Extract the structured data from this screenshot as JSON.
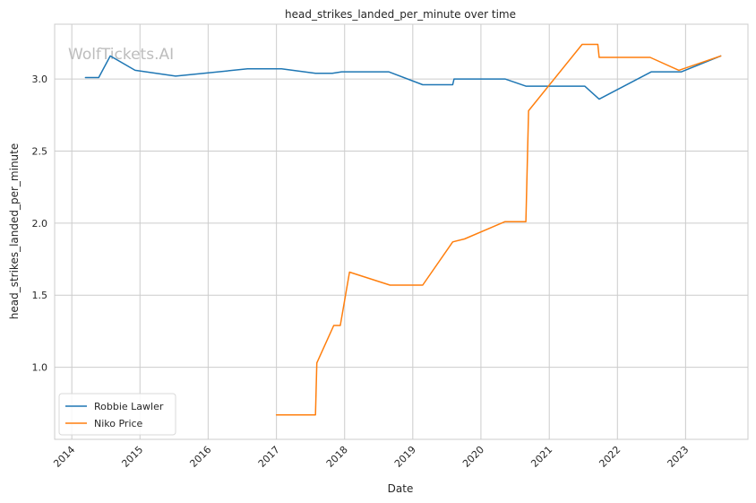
{
  "chart_data": {
    "type": "line",
    "title": "head_strikes_landed_per_minute over time",
    "xlabel": "Date",
    "ylabel": "head_strikes_landed_per_minute",
    "watermark": "WolfTickets.AI",
    "x_ticks": [
      "2014",
      "2015",
      "2016",
      "2017",
      "2018",
      "2019",
      "2020",
      "2021",
      "2022",
      "2023"
    ],
    "y_ticks": [
      "1.0",
      "1.5",
      "2.0",
      "2.5",
      "3.0"
    ],
    "ylim": [
      0.5,
      3.38
    ],
    "xlim": [
      "2013-10-01",
      "2023-12-01"
    ],
    "grid": true,
    "legend_position": "lower-left",
    "series": [
      {
        "name": "Robbie Lawler",
        "color": "#1f77b4",
        "points": [
          [
            "2014-03-15",
            3.01
          ],
          [
            "2014-05-25",
            3.01
          ],
          [
            "2014-07-26",
            3.16
          ],
          [
            "2014-12-06",
            3.06
          ],
          [
            "2015-07-11",
            3.02
          ],
          [
            "2016-07-30",
            3.07
          ],
          [
            "2017-01-28",
            3.07
          ],
          [
            "2017-07-29",
            3.04
          ],
          [
            "2017-10-27",
            3.04
          ],
          [
            "2017-12-16",
            3.05
          ],
          [
            "2018-08-25",
            3.05
          ],
          [
            "2019-02-23",
            2.96
          ],
          [
            "2019-08-03",
            2.96
          ],
          [
            "2019-08-10",
            3.0
          ],
          [
            "2020-05-09",
            3.0
          ],
          [
            "2020-08-29",
            2.95
          ],
          [
            "2021-07-10",
            2.95
          ],
          [
            "2021-09-25",
            2.86
          ],
          [
            "2022-07-02",
            3.05
          ],
          [
            "2022-12-10",
            3.05
          ],
          [
            "2023-07-08",
            3.16
          ]
        ]
      },
      {
        "name": "Niko Price",
        "color": "#ff7f0e",
        "points": [
          [
            "2017-01-01",
            0.67
          ],
          [
            "2017-07-29",
            0.67
          ],
          [
            "2017-08-05",
            1.03
          ],
          [
            "2017-11-04",
            1.29
          ],
          [
            "2017-12-09",
            1.29
          ],
          [
            "2018-01-27",
            1.66
          ],
          [
            "2018-09-01",
            1.57
          ],
          [
            "2019-02-23",
            1.57
          ],
          [
            "2019-08-03",
            1.87
          ],
          [
            "2019-10-05",
            1.89
          ],
          [
            "2020-05-09",
            2.01
          ],
          [
            "2020-08-29",
            2.01
          ],
          [
            "2020-09-12",
            2.78
          ],
          [
            "2021-06-26",
            3.24
          ],
          [
            "2021-09-18",
            3.24
          ],
          [
            "2021-09-25",
            3.15
          ],
          [
            "2022-06-25",
            3.15
          ],
          [
            "2022-11-26",
            3.06
          ],
          [
            "2023-07-08",
            3.16
          ]
        ]
      }
    ]
  }
}
